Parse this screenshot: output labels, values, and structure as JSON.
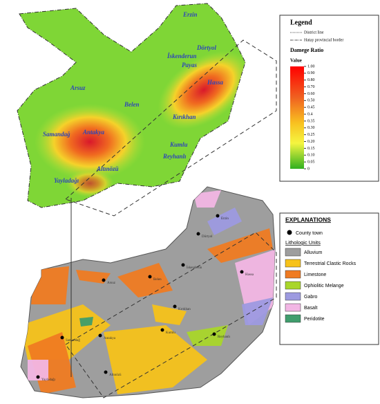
{
  "top_map": {
    "districts": [
      "Erzin",
      "Dörtyol",
      "Payas",
      "Hassa",
      "İskenderun",
      "Arsuz",
      "Belen",
      "Kırıkhan",
      "Samandağ",
      "Antakya",
      "Kumlu",
      "Reyhanlı",
      "Altınözü",
      "Yayladağı"
    ]
  },
  "legend": {
    "title": "Legend",
    "district_line": "District line",
    "provincial_border": "Hatay provincial border",
    "scale_title": "Damege Ratio",
    "scale_subtitle": "Value",
    "ticks": [
      {
        "value": 1,
        "label": "1.00"
      },
      {
        "value": 0.9,
        "label": "0.90"
      },
      {
        "value": 0.8,
        "label": "0.80"
      },
      {
        "value": 0.7,
        "label": "0.70"
      },
      {
        "value": 0.6,
        "label": "0.60"
      },
      {
        "value": 0.5,
        "label": "0.50"
      },
      0.45,
      0.4,
      0.35,
      {
        "value": 0.3,
        "label": "0.30"
      },
      0.25,
      {
        "value": 0.2,
        "label": "0.20"
      },
      0.15,
      {
        "value": 0.1,
        "label": "0.10"
      },
      0.05,
      0
    ]
  },
  "bottom_map": {
    "labels": [
      "Erzin",
      "Dörtyol",
      "Hassa",
      "İskenderun",
      "Arsuz",
      "Belen",
      "Kırıkhan",
      "Antakya",
      "Samandağ",
      "Kumlu",
      "Reyhanlı",
      "Altınözü",
      "Yayladağı"
    ]
  },
  "explanations": {
    "title": "EXPLANATIONS",
    "county_town": "County town",
    "units_title": "Lithologic Units",
    "units": [
      {
        "name": "Alluvium",
        "color": "#9e9e9e"
      },
      {
        "name": "Terrestrial Clastic Rocks",
        "color": "#f6c21a"
      },
      {
        "name": "Limestone",
        "color": "#ef7b22"
      },
      {
        "name": "Ophiolitic Melange",
        "color": "#a9d62a"
      },
      {
        "name": "Gabro",
        "color": "#9d9ae0"
      },
      {
        "name": "Basalt",
        "color": "#f2b6e4"
      },
      {
        "name": "Peridotite",
        "color": "#3f9d6c"
      }
    ]
  }
}
